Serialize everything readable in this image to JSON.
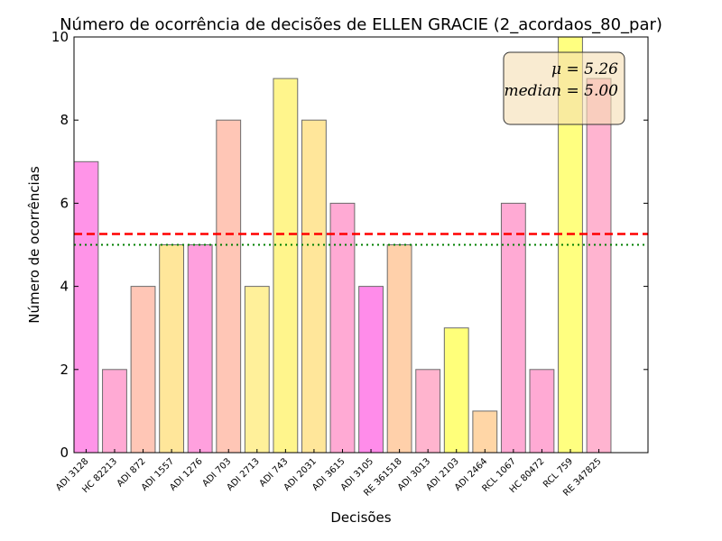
{
  "chart_data": {
    "type": "bar",
    "title": "Número de ocorrência de decisões de ELLEN GRACIE (2_acordaos_80_par)",
    "xlabel": "Decisões",
    "ylabel": "Número de ocorrências",
    "ylim": [
      0,
      10
    ],
    "yticks": [
      0,
      2,
      4,
      6,
      8,
      10
    ],
    "grid": false,
    "categories": [
      "ADI 3128",
      "HC 82213",
      "ADI 872",
      "ADI 1557",
      "ADI 1276",
      "ADI 703",
      "ADI 2713",
      "ADI 743",
      "ADI 2031",
      "ADI 3615",
      "ADI 3105",
      "RE 361518",
      "ADI 3013",
      "ADI 2103",
      "ADI 2464",
      "RCL 1067",
      "HC 80472",
      "RCL 759",
      "RE 347825"
    ],
    "values": [
      7,
      2,
      4,
      5,
      5,
      8,
      4,
      9,
      8,
      6,
      4,
      5,
      2,
      3,
      1,
      6,
      2,
      10,
      9
    ],
    "colors": [
      "#ff94e8",
      "#ffaad4",
      "#ffc6b6",
      "#ffe69a",
      "#ffa0de",
      "#ffc6b6",
      "#fff09a",
      "#fff58c",
      "#ffe69a",
      "#ffaad4",
      "#ff8cea",
      "#ffd0aa",
      "#ffb4ce",
      "#ffff7a",
      "#ffd6a6",
      "#ffaad4",
      "#ffaad4",
      "#ffff80",
      "#ffb4d0"
    ],
    "mean": 5.26,
    "median": 5.0,
    "mean_color": "#ff0000",
    "median_color": "#007f00",
    "stats_box": {
      "mean_text": "μ = 5.26",
      "median_text": "median = 5.00",
      "position": "top-right",
      "background": "#f5deb3"
    }
  }
}
